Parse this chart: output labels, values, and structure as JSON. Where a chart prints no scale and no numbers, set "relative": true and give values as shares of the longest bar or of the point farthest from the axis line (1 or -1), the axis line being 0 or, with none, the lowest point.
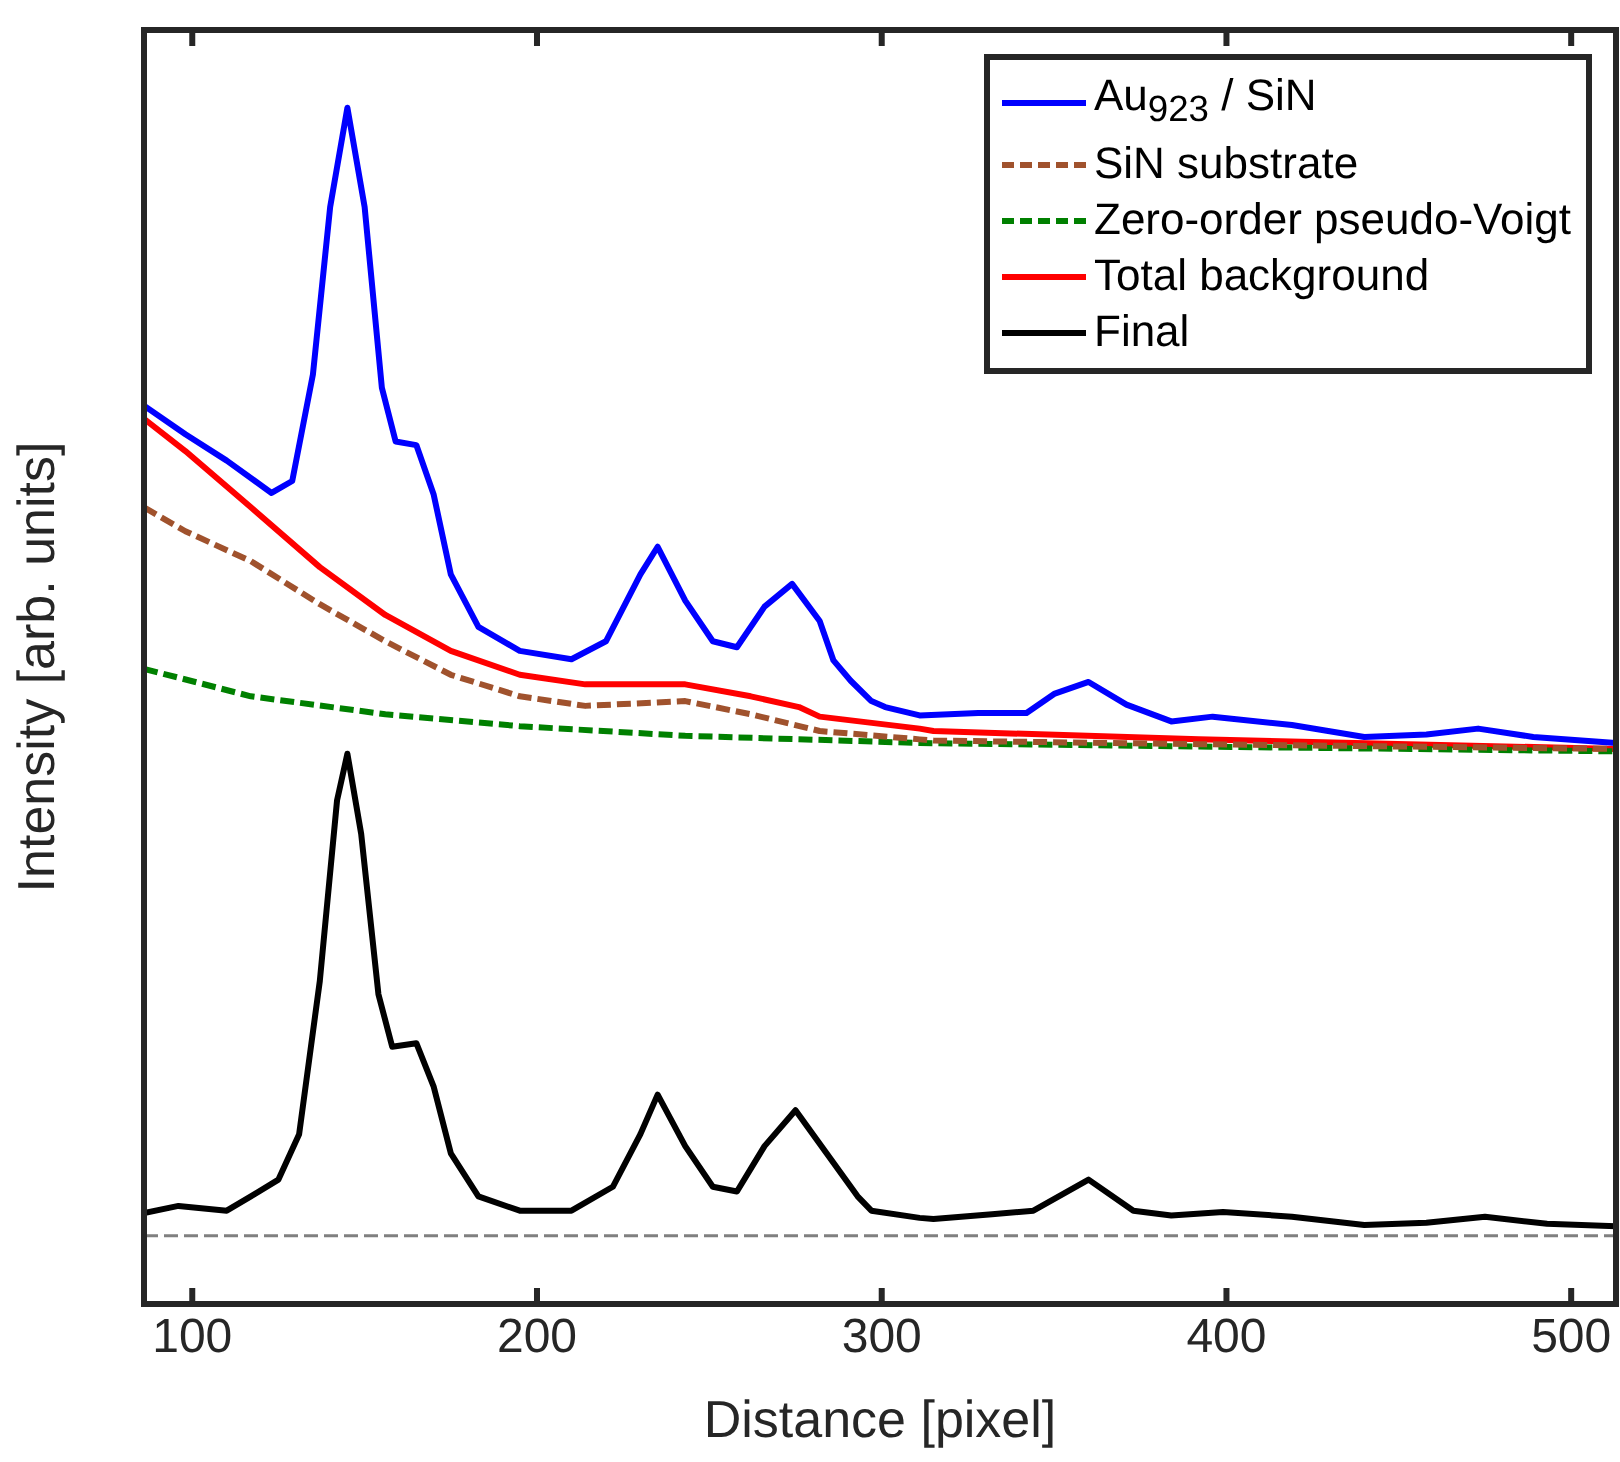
{
  "chart_data": {
    "type": "line",
    "xlabel": "Distance [pixel]",
    "ylabel": "Intensity [arb. units]",
    "relative": true,
    "xlim": [
      86,
      513
    ],
    "xticks": [
      100,
      200,
      300,
      400,
      500
    ],
    "legend": "top right",
    "series": [
      {
        "name": "Au$_{923}$ / SiN",
        "color": "#0000ff",
        "line_style": "solid",
        "x": [
          86,
          98,
          110,
          123,
          129,
          135,
          140,
          145,
          150,
          155,
          159,
          165,
          170,
          175,
          183,
          195,
          210,
          220,
          230,
          235,
          243,
          251,
          258,
          266,
          274,
          282,
          286,
          291,
          297,
          301,
          311,
          328,
          342,
          350,
          360,
          371,
          384,
          396,
          419,
          440,
          458,
          473,
          489,
          508,
          513
        ],
        "values": [
          0.751,
          0.727,
          0.705,
          0.678,
          0.688,
          0.777,
          0.917,
          1,
          0.917,
          0.766,
          0.721,
          0.718,
          0.677,
          0.61,
          0.566,
          0.546,
          0.539,
          0.554,
          0.61,
          0.633,
          0.588,
          0.554,
          0.549,
          0.583,
          0.602,
          0.571,
          0.538,
          0.521,
          0.504,
          0.499,
          0.492,
          0.494,
          0.494,
          0.51,
          0.52,
          0.501,
          0.487,
          0.491,
          0.484,
          0.474,
          0.476,
          0.481,
          0.474,
          0.47,
          0.469
        ]
      },
      {
        "name": "SiN substrate",
        "color": "#a0522d",
        "line_style": "dashed",
        "x": [
          86,
          98,
          117,
          137,
          156,
          175,
          195,
          214,
          243,
          262,
          282,
          311,
          315,
          392,
          513
        ],
        "values": [
          0.666,
          0.646,
          0.621,
          0.585,
          0.554,
          0.526,
          0.508,
          0.5,
          0.504,
          0.493,
          0.479,
          0.472,
          0.471,
          0.468,
          0.464
        ]
      },
      {
        "name": "Zero-order pseudo-Voigt",
        "color": "#008000",
        "line_style": "dashed",
        "x": [
          86,
          117,
          156,
          195,
          243,
          311,
          392,
          513
        ],
        "values": [
          0.531,
          0.508,
          0.493,
          0.483,
          0.475,
          0.469,
          0.466,
          0.462
        ]
      },
      {
        "name": "Total background",
        "color": "#ff0000",
        "line_style": "solid",
        "x": [
          86,
          98,
          117,
          137,
          156,
          175,
          195,
          214,
          243,
          262,
          276,
          282,
          311,
          315,
          392,
          513
        ],
        "values": [
          0.74,
          0.713,
          0.666,
          0.616,
          0.576,
          0.546,
          0.526,
          0.518,
          0.518,
          0.508,
          0.499,
          0.491,
          0.481,
          0.479,
          0.472,
          0.464
        ]
      },
      {
        "name": "Final",
        "color": "#000000",
        "line_style": "solid",
        "x": [
          86,
          96,
          110,
          117,
          125,
          131,
          137,
          142,
          145,
          149,
          154,
          158,
          165,
          170,
          175,
          183,
          195,
          210,
          222,
          230,
          235,
          243,
          251,
          258,
          266,
          275,
          284,
          293,
          297,
          311,
          315,
          332,
          344,
          360,
          373,
          384,
          399,
          419,
          440,
          458,
          475,
          493,
          513
        ],
        "values": [
          0.076,
          0.082,
          0.078,
          0.09,
          0.104,
          0.142,
          0.27,
          0.421,
          0.46,
          0.393,
          0.259,
          0.215,
          0.218,
          0.182,
          0.126,
          0.09,
          0.078,
          0.078,
          0.098,
          0.142,
          0.175,
          0.132,
          0.098,
          0.094,
          0.132,
          0.162,
          0.126,
          0.09,
          0.078,
          0.072,
          0.071,
          0.075,
          0.078,
          0.104,
          0.078,
          0.074,
          0.077,
          0.073,
          0.066,
          0.068,
          0.073,
          0.067,
          0.065
        ]
      }
    ],
    "ref_lines": [
      {
        "axis": "y",
        "value": 0.057,
        "color": "#808080",
        "line_style": "dashed"
      }
    ]
  }
}
